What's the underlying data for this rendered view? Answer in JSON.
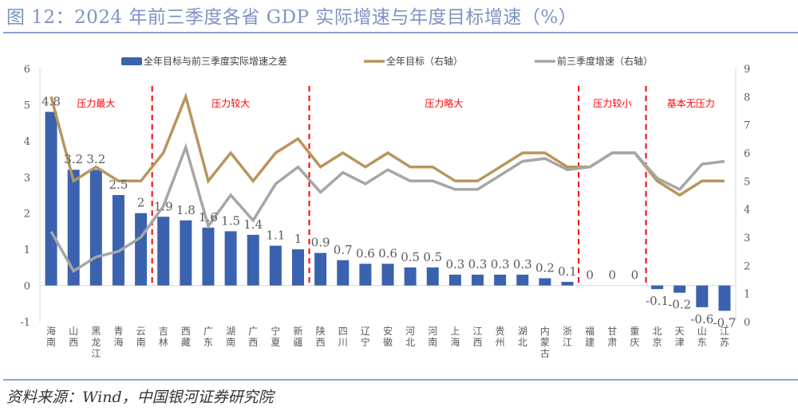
{
  "title": "图 12：2024 年前三季度各省 GDP 实际增速与年度目标增速（%）",
  "source": "资料来源：Wind，中国银河证券研究院",
  "chart_data": {
    "type": "bar",
    "title": "2024 年前三季度各省 GDP 实际增速与年度目标增速（%）",
    "categories": [
      "海南",
      "山西",
      "黑龙江",
      "青海",
      "云南",
      "吉林",
      "西藏",
      "广东",
      "湖南",
      "广西",
      "宁夏",
      "新疆",
      "陕西",
      "四川",
      "辽宁",
      "安徽",
      "河北",
      "河南",
      "上海",
      "江西",
      "贵州",
      "湖北",
      "内蒙古",
      "浙江",
      "福建",
      "甘肃",
      "重庆",
      "北京",
      "天津",
      "山东",
      "江苏"
    ],
    "left_axis": {
      "min": -1,
      "max": 6,
      "ticks": [
        "-1",
        "0",
        "1",
        "2",
        "3",
        "4",
        "5",
        "6"
      ]
    },
    "right_axis": {
      "min": 0,
      "max": 9,
      "ticks": [
        "0",
        "1",
        "2",
        "3",
        "4",
        "5",
        "6",
        "7",
        "8",
        "9"
      ]
    },
    "series": [
      {
        "name": "全年目标与前三季度实际增速之差",
        "type": "bar",
        "axis": "left",
        "color": "#3a62ae",
        "values": [
          4.8,
          3.2,
          3.2,
          2.5,
          2,
          1.9,
          1.8,
          1.6,
          1.5,
          1.4,
          1.1,
          1,
          0.9,
          0.7,
          0.6,
          0.6,
          0.5,
          0.5,
          0.3,
          0.3,
          0.3,
          0.3,
          0.2,
          0.1,
          0,
          0,
          0,
          -0.1,
          -0.2,
          -0.6,
          -0.7
        ]
      },
      {
        "name": "全年目标（右轴）",
        "type": "line",
        "axis": "right",
        "color": "#b8955c",
        "values": [
          8,
          5,
          5.5,
          5,
          5,
          6,
          8,
          5,
          6,
          5,
          6,
          6.5,
          5.5,
          6,
          5.5,
          6,
          5.5,
          5.5,
          5,
          5,
          5.5,
          6,
          6,
          5.5,
          5.5,
          6,
          6,
          5,
          4.5,
          5,
          5
        ]
      },
      {
        "name": "前三季度增速（右轴）",
        "type": "line",
        "axis": "right",
        "color": "#a6a6a6",
        "values": [
          3.2,
          1.8,
          2.3,
          2.5,
          3,
          4.1,
          6.2,
          3.4,
          4.5,
          3.6,
          4.9,
          5.5,
          4.6,
          5.3,
          4.9,
          5.4,
          5,
          5,
          4.7,
          4.7,
          5.2,
          5.7,
          5.8,
          5.4,
          5.5,
          6,
          6,
          5.1,
          4.7,
          5.6,
          5.7
        ]
      }
    ],
    "zones": [
      {
        "label": "压力最大",
        "start": 0,
        "end": 4
      },
      {
        "label": "压力较大",
        "start": 5,
        "end": 11
      },
      {
        "label": "压力略大",
        "start": 12,
        "end": 23
      },
      {
        "label": "压力较小",
        "start": 24,
        "end": 26
      },
      {
        "label": "基本无压力",
        "start": 27,
        "end": 30
      }
    ],
    "legend_position": "top-center",
    "grid": false
  }
}
